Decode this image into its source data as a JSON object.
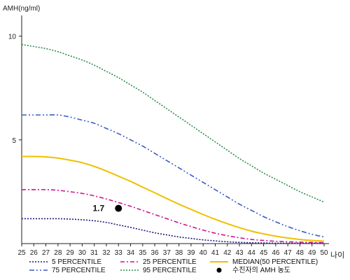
{
  "chart_data": {
    "type": "line",
    "ylabel": "AMH(ng/ml)",
    "xlabel": "나이",
    "xlim": [
      25,
      50
    ],
    "ylim": [
      0,
      11
    ],
    "yticks": [
      "5",
      "10"
    ],
    "yticks_values": [
      5,
      10
    ],
    "x": [
      25,
      26,
      27,
      28,
      29,
      30,
      31,
      32,
      33,
      34,
      35,
      36,
      37,
      38,
      39,
      40,
      41,
      42,
      43,
      44,
      45,
      46,
      47,
      48,
      49,
      50
    ],
    "x_labels": [
      "25",
      "26",
      "27",
      "28",
      "29",
      "30",
      "31",
      "32",
      "33",
      "34",
      "35",
      "36",
      "37",
      "38",
      "39",
      "40",
      "41",
      "42",
      "43",
      "44",
      "45",
      "46",
      "47",
      "48",
      "49",
      "50"
    ],
    "series": [
      {
        "name": "5 PERCENTILE",
        "color": "#1a1a7a",
        "dash": "2,2",
        "values": [
          1.2,
          1.2,
          1.2,
          1.2,
          1.18,
          1.15,
          1.1,
          1.02,
          0.9,
          0.78,
          0.65,
          0.52,
          0.42,
          0.32,
          0.25,
          0.18,
          0.13,
          0.09,
          0.06,
          0.04,
          0.03,
          0.02,
          0.02,
          0.02,
          0.02,
          0.02
        ]
      },
      {
        "name": "25 PERCENTILE",
        "color": "#d1148f",
        "dash": "6,3,2,3",
        "values": [
          2.6,
          2.6,
          2.6,
          2.57,
          2.5,
          2.42,
          2.3,
          2.15,
          1.98,
          1.8,
          1.6,
          1.4,
          1.2,
          1.0,
          0.82,
          0.65,
          0.5,
          0.38,
          0.28,
          0.2,
          0.15,
          0.11,
          0.09,
          0.07,
          0.06,
          0.05
        ]
      },
      {
        "name": "MEDIAN(50 PERCENTILE)",
        "color": "#f0c000",
        "dash": "",
        "values": [
          4.2,
          4.2,
          4.18,
          4.12,
          4.02,
          3.9,
          3.72,
          3.5,
          3.25,
          3.0,
          2.72,
          2.45,
          2.17,
          1.9,
          1.65,
          1.4,
          1.17,
          0.96,
          0.77,
          0.6,
          0.47,
          0.36,
          0.27,
          0.2,
          0.15,
          0.12
        ]
      },
      {
        "name": "75 PERCENTILE",
        "color": "#3a5cc4",
        "dash": "7,3,2,3,2,3",
        "values": [
          6.2,
          6.2,
          6.2,
          6.2,
          6.1,
          5.95,
          5.8,
          5.55,
          5.3,
          5.0,
          4.7,
          4.35,
          4.0,
          3.65,
          3.3,
          2.95,
          2.6,
          2.25,
          1.9,
          1.6,
          1.3,
          1.05,
          0.82,
          0.62,
          0.45,
          0.32
        ]
      },
      {
        "name": "95 PERCENTILE",
        "color": "#2e8a4e",
        "dash": "2,2",
        "values": [
          9.6,
          9.5,
          9.4,
          9.25,
          9.05,
          8.85,
          8.6,
          8.3,
          8.0,
          7.65,
          7.3,
          6.9,
          6.5,
          6.1,
          5.7,
          5.3,
          4.9,
          4.5,
          4.1,
          3.75,
          3.4,
          3.1,
          2.8,
          2.5,
          2.25,
          2.0
        ]
      }
    ],
    "point": {
      "name": "수진자의 AMH 농도",
      "label": "1.7",
      "x": 33,
      "y": 1.7,
      "color": "#000000"
    },
    "legend": {
      "placement": "bottom",
      "order": [
        {
          "type": "series",
          "index": 0
        },
        {
          "type": "series",
          "index": 1
        },
        {
          "type": "series",
          "index": 2
        },
        {
          "type": "series",
          "index": 3
        },
        {
          "type": "series",
          "index": 4
        },
        {
          "type": "point"
        }
      ]
    },
    "grid": false
  }
}
